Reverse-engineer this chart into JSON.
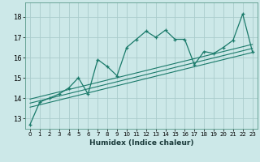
{
  "title": "",
  "xlabel": "Humidex (Indice chaleur)",
  "ylabel": "",
  "background_color": "#cce8e8",
  "grid_color": "#aacccc",
  "line_color": "#1a7a6a",
  "xlim": [
    -0.5,
    23.5
  ],
  "ylim": [
    12.5,
    18.7
  ],
  "yticks": [
    13,
    14,
    15,
    16,
    17,
    18
  ],
  "xticks": [
    0,
    1,
    2,
    3,
    4,
    5,
    6,
    7,
    8,
    9,
    10,
    11,
    12,
    13,
    14,
    15,
    16,
    17,
    18,
    19,
    20,
    21,
    22,
    23
  ],
  "series": [
    [
      0,
      12.7
    ],
    [
      1,
      13.8
    ],
    [
      2,
      14.0
    ],
    [
      3,
      14.2
    ],
    [
      4,
      14.5
    ],
    [
      5,
      15.0
    ],
    [
      6,
      14.2
    ],
    [
      7,
      15.9
    ],
    [
      8,
      15.55
    ],
    [
      9,
      15.1
    ],
    [
      10,
      16.5
    ],
    [
      11,
      16.9
    ],
    [
      12,
      17.3
    ],
    [
      13,
      17.0
    ],
    [
      14,
      17.35
    ],
    [
      15,
      16.9
    ],
    [
      16,
      16.9
    ],
    [
      17,
      15.65
    ],
    [
      18,
      16.3
    ],
    [
      19,
      16.2
    ],
    [
      20,
      16.5
    ],
    [
      21,
      16.85
    ],
    [
      22,
      18.15
    ],
    [
      23,
      16.3
    ]
  ],
  "linear_sets": [
    [
      [
        0,
        23
      ],
      [
        13.55,
        16.25
      ]
    ],
    [
      [
        0,
        23
      ],
      [
        13.75,
        16.45
      ]
    ],
    [
      [
        0,
        23
      ],
      [
        13.95,
        16.65
      ]
    ]
  ]
}
